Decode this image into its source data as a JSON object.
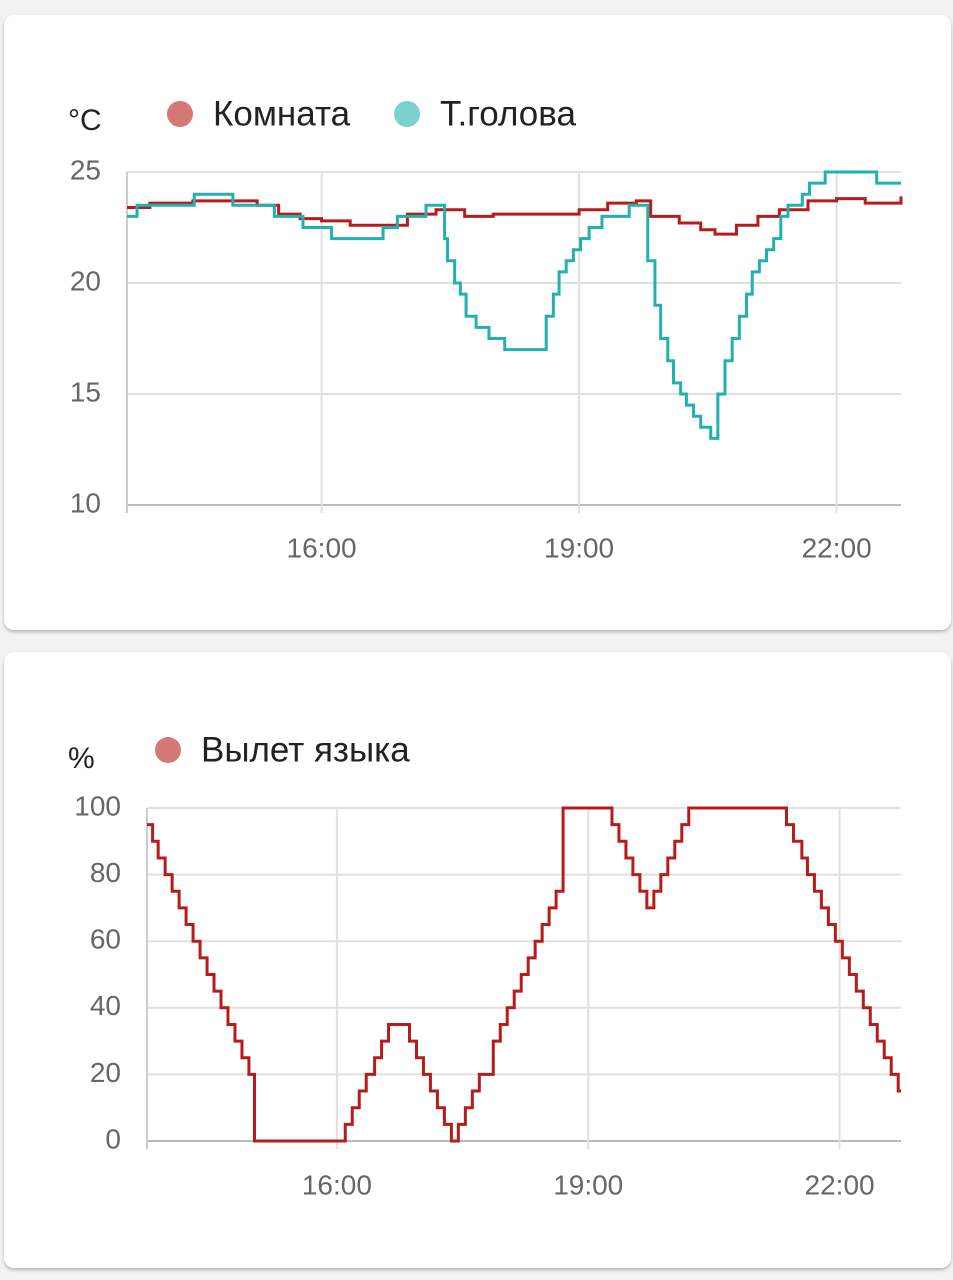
{
  "chart_data": [
    {
      "type": "line",
      "step": true,
      "y_unit": "°C",
      "xlim": [
        "13:44",
        "22:45"
      ],
      "xticks": [
        "16:00",
        "19:00",
        "22:00"
      ],
      "ylim": [
        10,
        25
      ],
      "yticks": [
        10,
        15,
        20,
        25
      ],
      "grid": true,
      "series": [
        {
          "name": "Комната",
          "color": "#b71c1c",
          "x": [
            "13:44",
            "14:00",
            "14:30",
            "15:00",
            "15:15",
            "15:30",
            "15:45",
            "16:00",
            "16:20",
            "16:40",
            "17:00",
            "17:20",
            "17:30",
            "17:40",
            "18:00",
            "18:30",
            "19:00",
            "19:20",
            "19:40",
            "19:50",
            "20:10",
            "20:25",
            "20:35",
            "20:50",
            "21:05",
            "21:20",
            "21:40",
            "22:00",
            "22:20",
            "22:45"
          ],
          "values": [
            23.4,
            23.6,
            23.7,
            23.7,
            23.5,
            23.1,
            22.9,
            22.8,
            22.6,
            22.6,
            23.1,
            23.3,
            23.3,
            23.0,
            23.1,
            23.1,
            23.3,
            23.6,
            23.7,
            23.0,
            22.7,
            22.4,
            22.2,
            22.6,
            23.0,
            23.3,
            23.7,
            23.8,
            23.6,
            23.9
          ]
        },
        {
          "name": "Т.голова",
          "color": "#23b0b0",
          "x": [
            "13:44",
            "13:51",
            "14:31",
            "14:58",
            "15:27",
            "15:47",
            "16:07",
            "16:43",
            "16:53",
            "17:13",
            "17:26",
            "17:28",
            "17:33",
            "17:37",
            "17:41",
            "17:48",
            "17:57",
            "18:08",
            "18:37",
            "18:42",
            "18:46",
            "18:51",
            "18:56",
            "19:01",
            "19:07",
            "19:16",
            "19:35",
            "19:48",
            "19:53",
            "19:57",
            "20:02",
            "20:06",
            "20:11",
            "20:15",
            "20:20",
            "20:25",
            "20:32",
            "20:37",
            "20:42",
            "20:47",
            "20:52",
            "20:57",
            "21:01",
            "21:06",
            "21:11",
            "21:16",
            "21:21",
            "21:26",
            "21:36",
            "21:41",
            "21:52",
            "22:28"
          ],
          "values": [
            23.0,
            23.5,
            24.0,
            23.5,
            23.0,
            22.5,
            22.0,
            22.5,
            23.0,
            23.5,
            22.0,
            21.0,
            20.0,
            19.5,
            18.5,
            18.0,
            17.5,
            17.0,
            18.5,
            19.5,
            20.5,
            21.0,
            21.5,
            22.0,
            22.5,
            23.0,
            23.5,
            21.0,
            19.0,
            17.5,
            16.5,
            15.5,
            15.0,
            14.5,
            14.0,
            13.5,
            13.0,
            15.0,
            16.5,
            17.5,
            18.5,
            19.5,
            20.5,
            21.0,
            21.5,
            22.0,
            23.0,
            23.5,
            24.0,
            24.5,
            25.0,
            24.5
          ]
        }
      ]
    },
    {
      "type": "line",
      "step": true,
      "y_unit": "%",
      "xlim": [
        "13:44",
        "22:44"
      ],
      "xticks": [
        "16:00",
        "19:00",
        "22:00"
      ],
      "ylim": [
        0,
        100
      ],
      "yticks": [
        0,
        20,
        40,
        60,
        80,
        100
      ],
      "grid": true,
      "series": [
        {
          "name": "Вылет языка",
          "color": "#b71c1c",
          "x": [
            "13:44",
            "13:48",
            "13:52",
            "13:57",
            "14:02",
            "14:07",
            "14:12",
            "14:17",
            "14:22",
            "14:27",
            "14:32",
            "14:37",
            "14:42",
            "14:47",
            "14:52",
            "14:57",
            "15:01",
            "16:06",
            "16:11",
            "16:16",
            "16:21",
            "16:27",
            "16:32",
            "16:37",
            "16:52",
            "16:57",
            "17:02",
            "17:07",
            "17:12",
            "17:17",
            "17:22",
            "17:27",
            "17:32",
            "17:37",
            "17:42",
            "17:52",
            "17:57",
            "18:02",
            "18:07",
            "18:12",
            "18:17",
            "18:22",
            "18:27",
            "18:32",
            "18:37",
            "18:42",
            "19:17",
            "19:22",
            "19:27",
            "19:32",
            "19:37",
            "19:42",
            "19:47",
            "19:52",
            "19:57",
            "20:02",
            "20:07",
            "20:12",
            "21:22",
            "21:27",
            "21:33",
            "21:37",
            "21:42",
            "21:47",
            "21:52",
            "21:57",
            "22:02",
            "22:07",
            "22:12",
            "22:17",
            "22:22",
            "22:27",
            "22:32",
            "22:37",
            "22:42"
          ],
          "values": [
            95,
            90,
            85,
            80,
            75,
            70,
            65,
            60,
            55,
            50,
            45,
            40,
            35,
            30,
            25,
            20,
            0,
            5,
            10,
            15,
            20,
            25,
            30,
            35,
            30,
            25,
            20,
            15,
            10,
            5,
            0,
            5,
            10,
            15,
            20,
            30,
            35,
            40,
            45,
            50,
            55,
            60,
            65,
            70,
            75,
            100,
            95,
            90,
            85,
            80,
            75,
            70,
            75,
            80,
            85,
            90,
            95,
            100,
            95,
            90,
            85,
            80,
            75,
            70,
            65,
            60,
            55,
            50,
            45,
            40,
            35,
            30,
            25,
            20,
            15
          ]
        }
      ]
    }
  ]
}
